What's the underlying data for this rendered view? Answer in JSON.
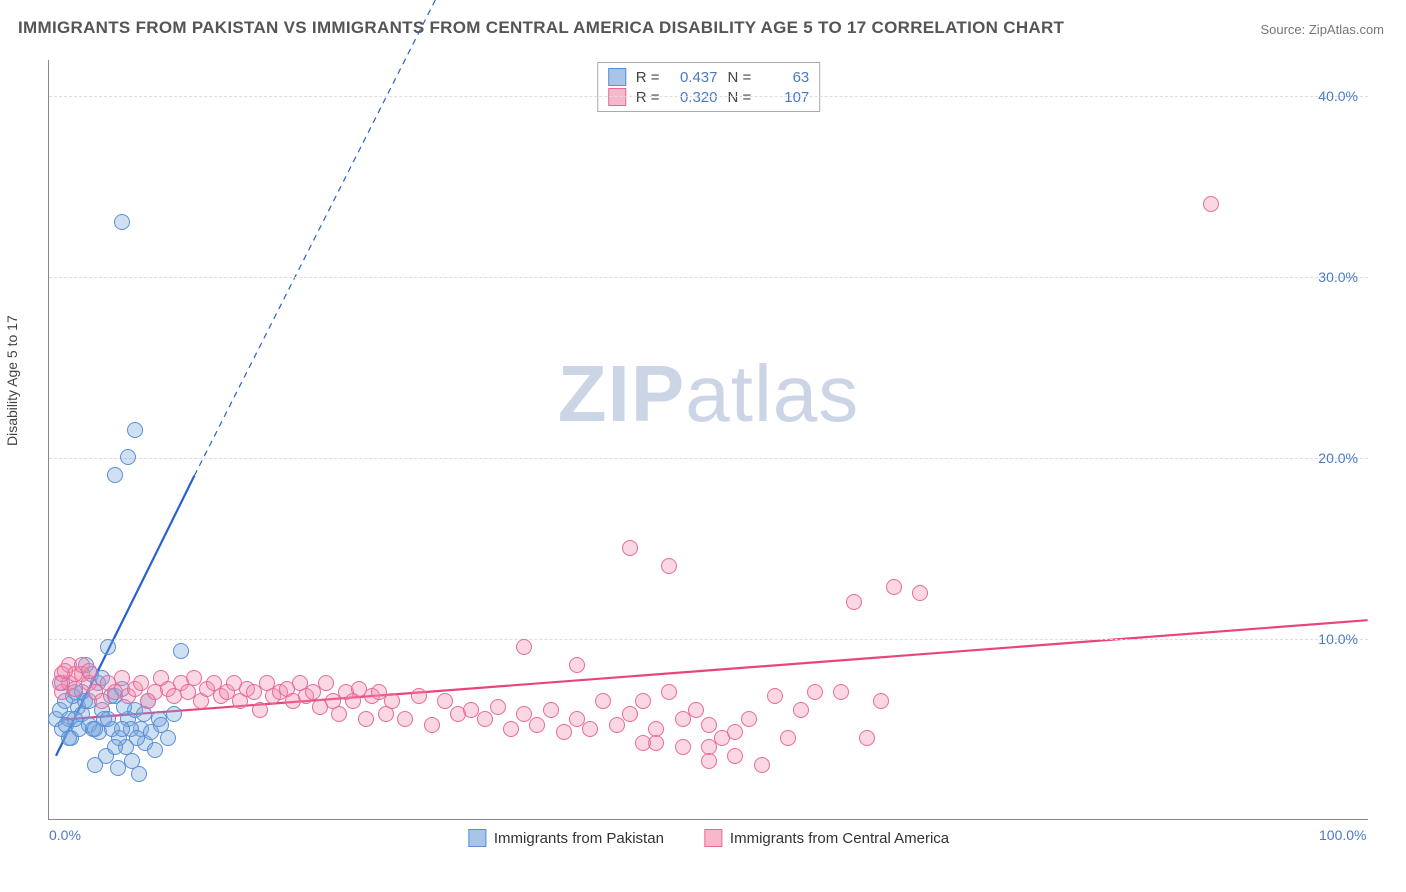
{
  "title": "IMMIGRANTS FROM PAKISTAN VS IMMIGRANTS FROM CENTRAL AMERICA DISABILITY AGE 5 TO 17 CORRELATION CHART",
  "source": "Source: ZipAtlas.com",
  "ylabel": "Disability Age 5 to 17",
  "watermark_bold": "ZIP",
  "watermark_light": "atlas",
  "chart": {
    "type": "scatter",
    "background_color": "#ffffff",
    "grid_color": "#dddddd",
    "axis_color": "#888888",
    "xlim": [
      0,
      100
    ],
    "ylim": [
      0,
      42
    ],
    "x_ticks": [
      {
        "v": 0,
        "label": "0.0%"
      },
      {
        "v": 100,
        "label": "100.0%"
      }
    ],
    "y_ticks": [
      {
        "v": 10,
        "label": "10.0%"
      },
      {
        "v": 20,
        "label": "20.0%"
      },
      {
        "v": 30,
        "label": "30.0%"
      },
      {
        "v": 40,
        "label": "40.0%"
      }
    ],
    "marker_radius": 8,
    "marker_border_width": 1,
    "marker_fill_opacity": 0.35,
    "label_fontsize": 14,
    "label_color": "#4a7ac7"
  },
  "series": [
    {
      "name": "Immigrants from Pakistan",
      "swatch_fill": "#a8c4e8",
      "swatch_border": "#5a8fd6",
      "marker_fill": "rgba(120,165,220,0.35)",
      "marker_border": "#5a8fd6",
      "trend_color": "#2a5fd0",
      "trend_width": 2.2,
      "trend_dash_ext": true,
      "R": "0.437",
      "N": "63",
      "trend": {
        "x1": 0.5,
        "y1": 3.5,
        "x2_solid": 11.0,
        "y2_solid": 19.0,
        "x2_dash": 36.0,
        "y2_dash": 55.0
      },
      "points": [
        [
          0.5,
          5.5
        ],
        [
          0.8,
          6.0
        ],
        [
          1.0,
          5.0
        ],
        [
          1.2,
          6.5
        ],
        [
          1.5,
          5.5
        ],
        [
          1.7,
          4.5
        ],
        [
          2.0,
          7.0
        ],
        [
          2.2,
          6.2
        ],
        [
          2.5,
          5.8
        ],
        [
          2.8,
          8.5
        ],
        [
          3.0,
          5.2
        ],
        [
          3.2,
          8.0
        ],
        [
          3.5,
          3.0
        ],
        [
          3.8,
          4.8
        ],
        [
          4.0,
          6.0
        ],
        [
          4.3,
          3.5
        ],
        [
          4.5,
          9.5
        ],
        [
          4.8,
          5.0
        ],
        [
          5.0,
          6.8
        ],
        [
          5.2,
          2.8
        ],
        [
          5.5,
          7.2
        ],
        [
          5.8,
          4.0
        ],
        [
          6.0,
          5.5
        ],
        [
          6.3,
          3.2
        ],
        [
          6.5,
          6.0
        ],
        [
          6.8,
          2.5
        ],
        [
          7.0,
          5.0
        ],
        [
          7.3,
          4.2
        ],
        [
          7.5,
          6.5
        ],
        [
          8.0,
          3.8
        ],
        [
          8.3,
          5.5
        ],
        [
          10.0,
          9.3
        ],
        [
          5.0,
          19.0
        ],
        [
          6.0,
          20.0
        ],
        [
          6.5,
          21.5
        ],
        [
          5.5,
          33.0
        ],
        [
          1.3,
          5.2
        ],
        [
          1.8,
          6.8
        ],
        [
          2.3,
          5.0
        ],
        [
          2.7,
          6.5
        ],
        [
          3.3,
          5.0
        ],
        [
          3.7,
          7.5
        ],
        [
          4.2,
          5.5
        ],
        [
          4.7,
          6.8
        ],
        [
          5.3,
          4.5
        ],
        [
          5.7,
          6.2
        ],
        [
          6.2,
          5.0
        ],
        [
          6.7,
          4.5
        ],
        [
          7.2,
          5.8
        ],
        [
          7.7,
          4.8
        ],
        [
          8.5,
          5.2
        ],
        [
          9.0,
          4.5
        ],
        [
          9.5,
          5.8
        ],
        [
          1.0,
          7.5
        ],
        [
          1.5,
          4.5
        ],
        [
          2.0,
          5.5
        ],
        [
          2.5,
          7.0
        ],
        [
          3.0,
          6.5
        ],
        [
          3.5,
          5.0
        ],
        [
          4.0,
          7.8
        ],
        [
          4.5,
          5.5
        ],
        [
          5.0,
          4.0
        ],
        [
          5.5,
          5.0
        ]
      ]
    },
    {
      "name": "Immigrants from Central America",
      "swatch_fill": "#f7b8cb",
      "swatch_border": "#e86a9a",
      "marker_fill": "rgba(240,140,175,0.35)",
      "marker_border": "#e86a9a",
      "trend_color": "#e8457e",
      "trend_width": 2.2,
      "trend_dash_ext": false,
      "R": "0.320",
      "N": "107",
      "trend": {
        "x1": 1.0,
        "y1": 5.5,
        "x2_solid": 100.0,
        "y2_solid": 11.0
      },
      "points": [
        [
          1.0,
          7.0
        ],
        [
          1.5,
          7.5
        ],
        [
          2.0,
          7.2
        ],
        [
          2.5,
          8.0
        ],
        [
          3.0,
          7.5
        ],
        [
          3.5,
          7.0
        ],
        [
          4.0,
          6.5
        ],
        [
          4.5,
          7.5
        ],
        [
          5.0,
          7.0
        ],
        [
          5.5,
          7.8
        ],
        [
          6.0,
          6.8
        ],
        [
          6.5,
          7.2
        ],
        [
          7.0,
          7.5
        ],
        [
          7.5,
          6.5
        ],
        [
          8.0,
          7.0
        ],
        [
          8.5,
          7.8
        ],
        [
          9.0,
          7.2
        ],
        [
          9.5,
          6.8
        ],
        [
          10.0,
          7.5
        ],
        [
          10.5,
          7.0
        ],
        [
          11.0,
          7.8
        ],
        [
          11.5,
          6.5
        ],
        [
          12.0,
          7.2
        ],
        [
          12.5,
          7.5
        ],
        [
          13.0,
          6.8
        ],
        [
          13.5,
          7.0
        ],
        [
          14.0,
          7.5
        ],
        [
          14.5,
          6.5
        ],
        [
          15.0,
          7.2
        ],
        [
          15.5,
          7.0
        ],
        [
          16.0,
          6.0
        ],
        [
          16.5,
          7.5
        ],
        [
          17.0,
          6.8
        ],
        [
          17.5,
          7.0
        ],
        [
          18.0,
          7.2
        ],
        [
          18.5,
          6.5
        ],
        [
          19.0,
          7.5
        ],
        [
          19.5,
          6.8
        ],
        [
          20.0,
          7.0
        ],
        [
          20.5,
          6.2
        ],
        [
          21.0,
          7.5
        ],
        [
          21.5,
          6.5
        ],
        [
          22.0,
          5.8
        ],
        [
          22.5,
          7.0
        ],
        [
          23.0,
          6.5
        ],
        [
          23.5,
          7.2
        ],
        [
          24.0,
          5.5
        ],
        [
          24.5,
          6.8
        ],
        [
          25.0,
          7.0
        ],
        [
          25.5,
          5.8
        ],
        [
          26.0,
          6.5
        ],
        [
          27.0,
          5.5
        ],
        [
          28.0,
          6.8
        ],
        [
          29.0,
          5.2
        ],
        [
          30.0,
          6.5
        ],
        [
          31.0,
          5.8
        ],
        [
          32.0,
          6.0
        ],
        [
          33.0,
          5.5
        ],
        [
          34.0,
          6.2
        ],
        [
          35.0,
          5.0
        ],
        [
          36.0,
          5.8
        ],
        [
          37.0,
          5.2
        ],
        [
          38.0,
          6.0
        ],
        [
          39.0,
          4.8
        ],
        [
          40.0,
          5.5
        ],
        [
          41.0,
          5.0
        ],
        [
          42.0,
          6.5
        ],
        [
          43.0,
          5.2
        ],
        [
          44.0,
          5.8
        ],
        [
          45.0,
          6.5
        ],
        [
          46.0,
          5.0
        ],
        [
          47.0,
          7.0
        ],
        [
          48.0,
          5.5
        ],
        [
          49.0,
          6.0
        ],
        [
          50.0,
          5.2
        ],
        [
          51.0,
          4.5
        ],
        [
          36.0,
          9.5
        ],
        [
          40.0,
          8.5
        ],
        [
          44.0,
          15.0
        ],
        [
          47.0,
          14.0
        ],
        [
          50.0,
          4.0
        ],
        [
          52.0,
          4.8
        ],
        [
          53.0,
          5.5
        ],
        [
          54.0,
          3.0
        ],
        [
          55.0,
          6.8
        ],
        [
          56.0,
          4.5
        ],
        [
          57.0,
          6.0
        ],
        [
          58.0,
          7.0
        ],
        [
          60.0,
          7.0
        ],
        [
          61.0,
          12.0
        ],
        [
          62.0,
          4.5
        ],
        [
          63.0,
          6.5
        ],
        [
          64.0,
          12.8
        ],
        [
          66.0,
          12.5
        ],
        [
          52.0,
          3.5
        ],
        [
          50.0,
          3.2
        ],
        [
          48.0,
          4.0
        ],
        [
          46.0,
          4.2
        ],
        [
          1.5,
          8.5
        ],
        [
          2.0,
          8.0
        ],
        [
          2.5,
          8.5
        ],
        [
          3.0,
          8.2
        ],
        [
          1.0,
          8.0
        ],
        [
          0.8,
          7.5
        ],
        [
          1.2,
          8.2
        ],
        [
          88.0,
          34.0
        ],
        [
          45.0,
          4.2
        ]
      ]
    }
  ],
  "legend_stats_labels": {
    "R": "R =",
    "N": "N ="
  }
}
